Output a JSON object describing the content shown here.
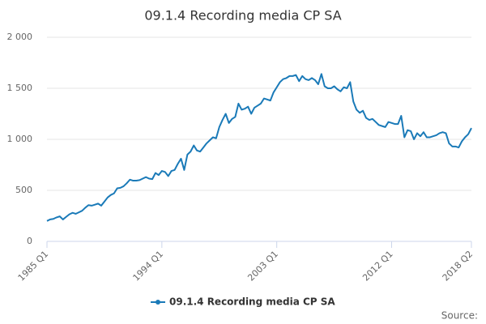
{
  "chart_data": {
    "type": "line",
    "title": "09.1.4 Recording media CP SA",
    "categories": [
      "1985 Q1",
      null,
      null,
      null,
      null,
      null,
      null,
      null,
      null,
      null,
      null,
      null,
      null,
      null,
      null,
      null,
      null,
      null,
      null,
      null,
      null,
      null,
      null,
      null,
      null,
      null,
      null,
      null,
      null,
      null,
      null,
      null,
      null,
      null,
      null,
      null,
      "1994 Q1",
      null,
      null,
      null,
      null,
      null,
      null,
      null,
      null,
      null,
      null,
      null,
      null,
      null,
      null,
      null,
      null,
      null,
      null,
      null,
      null,
      null,
      null,
      null,
      null,
      null,
      null,
      null,
      null,
      null,
      null,
      null,
      null,
      null,
      null,
      null,
      "2003 Q1",
      null,
      null,
      null,
      null,
      null,
      null,
      null,
      null,
      null,
      null,
      null,
      null,
      null,
      null,
      null,
      null,
      null,
      null,
      null,
      null,
      null,
      null,
      null,
      null,
      null,
      null,
      null,
      null,
      null,
      null,
      null,
      null,
      null,
      null,
      null,
      "2012 Q1",
      null,
      null,
      null,
      null,
      null,
      null,
      null,
      null,
      null,
      null,
      null,
      null,
      null,
      null,
      null,
      null,
      null,
      null,
      null,
      null,
      null,
      null,
      null,
      null,
      "2018 Q2"
    ],
    "series": [
      {
        "name": "09.1.4 Recording media CP SA",
        "color": "#1a7ab8",
        "values": [
          200,
          215,
          220,
          235,
          245,
          215,
          240,
          265,
          280,
          270,
          285,
          300,
          330,
          355,
          350,
          360,
          370,
          350,
          390,
          430,
          455,
          470,
          520,
          525,
          540,
          570,
          605,
          595,
          595,
          600,
          615,
          630,
          615,
          610,
          670,
          650,
          690,
          680,
          640,
          690,
          700,
          760,
          810,
          700,
          850,
          880,
          940,
          890,
          880,
          920,
          960,
          990,
          1020,
          1010,
          1120,
          1190,
          1250,
          1160,
          1200,
          1220,
          1350,
          1290,
          1300,
          1320,
          1250,
          1310,
          1330,
          1350,
          1400,
          1390,
          1380,
          1460,
          1510,
          1560,
          1590,
          1600,
          1620,
          1620,
          1630,
          1570,
          1620,
          1590,
          1580,
          1600,
          1580,
          1540,
          1640,
          1520,
          1500,
          1500,
          1520,
          1490,
          1470,
          1510,
          1500,
          1560,
          1370,
          1290,
          1260,
          1280,
          1210,
          1190,
          1200,
          1170,
          1140,
          1130,
          1120,
          1170,
          1160,
          1150,
          1150,
          1230,
          1020,
          1090,
          1080,
          1000,
          1060,
          1030,
          1070,
          1020,
          1020,
          1030,
          1040,
          1060,
          1070,
          1060,
          960,
          930,
          930,
          920,
          980,
          1020,
          1050,
          1110
        ]
      }
    ],
    "ylim": [
      0,
      2000
    ],
    "yticks": [
      0,
      500,
      {
        "value": 1000,
        "label": "1 000"
      },
      {
        "value": 1500,
        "label": "1 500"
      },
      {
        "value": 2000,
        "label": "2 000"
      }
    ],
    "grid": true,
    "legend": "bottom",
    "source": "Source:"
  }
}
